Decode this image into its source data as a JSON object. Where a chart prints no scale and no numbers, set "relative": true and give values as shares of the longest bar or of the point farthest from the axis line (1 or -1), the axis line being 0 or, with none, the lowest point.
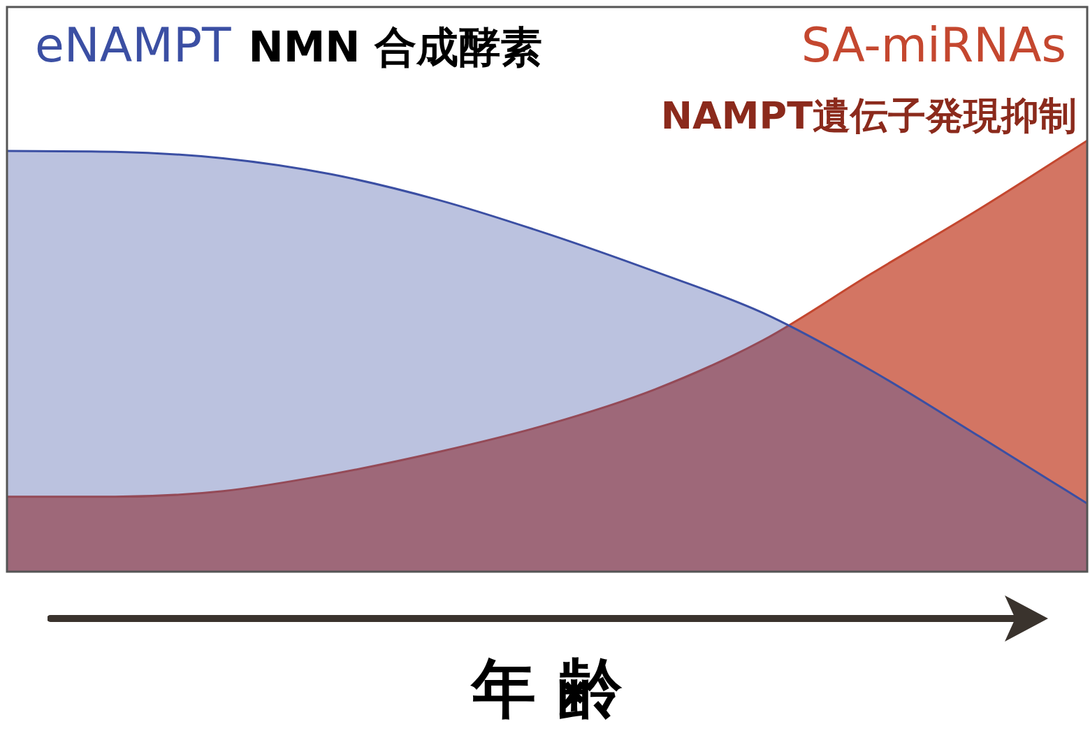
{
  "chart_data": {
    "type": "area",
    "relative": true,
    "xlabel": "年 齢",
    "categories": [
      null,
      null,
      null,
      null,
      null,
      null,
      null,
      null,
      null,
      null,
      null
    ],
    "series": [
      {
        "name": "eNAMPT",
        "color": "#3b4fa3",
        "values": [
          0.976,
          0.974,
          0.959,
          0.922,
          0.862,
          0.784,
          0.696,
          0.6,
          0.467,
          0.314,
          0.158
        ]
      },
      {
        "name": "SA-miRNAs",
        "color": "#c4472f",
        "values": [
          0.174,
          0.174,
          0.187,
          0.226,
          0.278,
          0.341,
          0.423,
          0.537,
          0.691,
          0.841,
          1.0
        ]
      }
    ],
    "annotations": [
      "NMN 合成酵素",
      "NAMPT遺伝子発現抑制"
    ],
    "legend": false
  }
}
